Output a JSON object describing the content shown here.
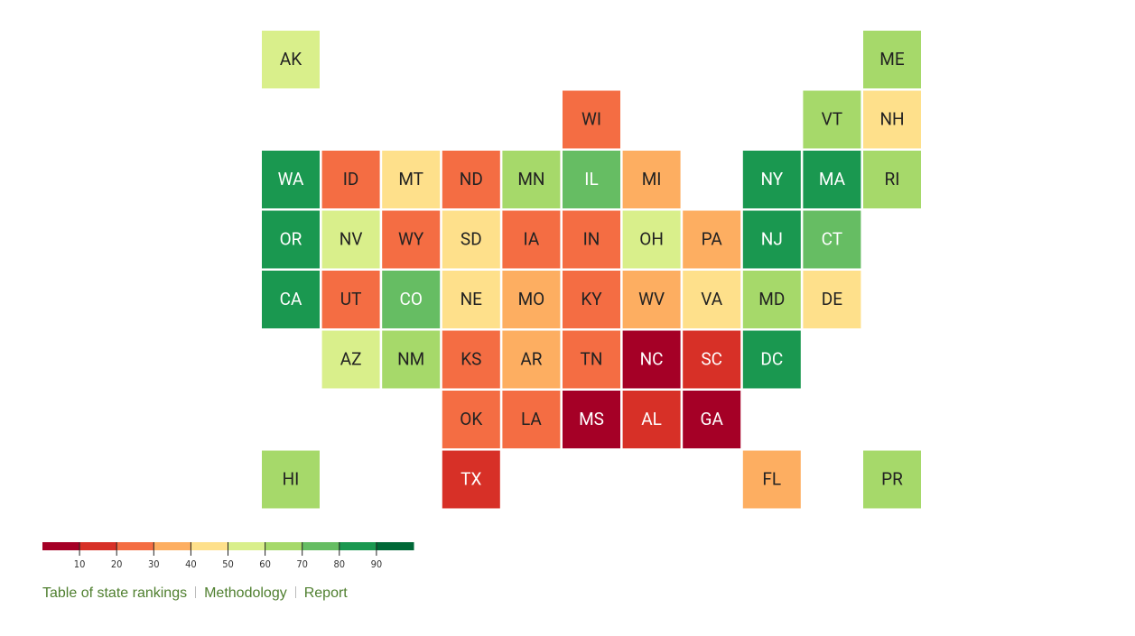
{
  "chart_data": {
    "type": "tilemap",
    "states": [
      {
        "code": "AK",
        "value": 55
      },
      {
        "code": "ME",
        "value": 65
      },
      {
        "code": "WI",
        "value": 25
      },
      {
        "code": "VT",
        "value": 65
      },
      {
        "code": "NH",
        "value": 45
      },
      {
        "code": "WA",
        "value": 85
      },
      {
        "code": "ID",
        "value": 25
      },
      {
        "code": "MT",
        "value": 45
      },
      {
        "code": "ND",
        "value": 25
      },
      {
        "code": "MN",
        "value": 65
      },
      {
        "code": "IL",
        "value": 75
      },
      {
        "code": "MI",
        "value": 35
      },
      {
        "code": "NY",
        "value": 85
      },
      {
        "code": "MA",
        "value": 85
      },
      {
        "code": "RI",
        "value": 65
      },
      {
        "code": "OR",
        "value": 85
      },
      {
        "code": "NV",
        "value": 55
      },
      {
        "code": "WY",
        "value": 25
      },
      {
        "code": "SD",
        "value": 45
      },
      {
        "code": "IA",
        "value": 25
      },
      {
        "code": "IN",
        "value": 25
      },
      {
        "code": "OH",
        "value": 55
      },
      {
        "code": "PA",
        "value": 35
      },
      {
        "code": "NJ",
        "value": 85
      },
      {
        "code": "CT",
        "value": 75
      },
      {
        "code": "CA",
        "value": 85
      },
      {
        "code": "UT",
        "value": 25
      },
      {
        "code": "CO",
        "value": 75
      },
      {
        "code": "NE",
        "value": 45
      },
      {
        "code": "MO",
        "value": 35
      },
      {
        "code": "KY",
        "value": 25
      },
      {
        "code": "WV",
        "value": 35
      },
      {
        "code": "VA",
        "value": 45
      },
      {
        "code": "MD",
        "value": 65
      },
      {
        "code": "DE",
        "value": 45
      },
      {
        "code": "AZ",
        "value": 55
      },
      {
        "code": "NM",
        "value": 65
      },
      {
        "code": "KS",
        "value": 25
      },
      {
        "code": "AR",
        "value": 35
      },
      {
        "code": "TN",
        "value": 25
      },
      {
        "code": "NC",
        "value": 5
      },
      {
        "code": "SC",
        "value": 15
      },
      {
        "code": "DC",
        "value": 85
      },
      {
        "code": "OK",
        "value": 25
      },
      {
        "code": "LA",
        "value": 25
      },
      {
        "code": "MS",
        "value": 5
      },
      {
        "code": "AL",
        "value": 15
      },
      {
        "code": "GA",
        "value": 5
      },
      {
        "code": "HI",
        "value": 65
      },
      {
        "code": "TX",
        "value": 15
      },
      {
        "code": "FL",
        "value": 35
      },
      {
        "code": "PR",
        "value": 65
      }
    ],
    "legend": {
      "lim": [
        0,
        100
      ],
      "ticks": [
        10,
        20,
        30,
        40,
        50,
        60,
        70,
        80,
        90
      ],
      "colors": [
        "#a50026",
        "#d73027",
        "#f46d43",
        "#fdae61",
        "#fee08b",
        "#d9ef8b",
        "#a6d96a",
        "#66bd63",
        "#1a9850",
        "#006837"
      ]
    },
    "links": [
      "Table of state rankings",
      "Methodology",
      "Report"
    ]
  }
}
